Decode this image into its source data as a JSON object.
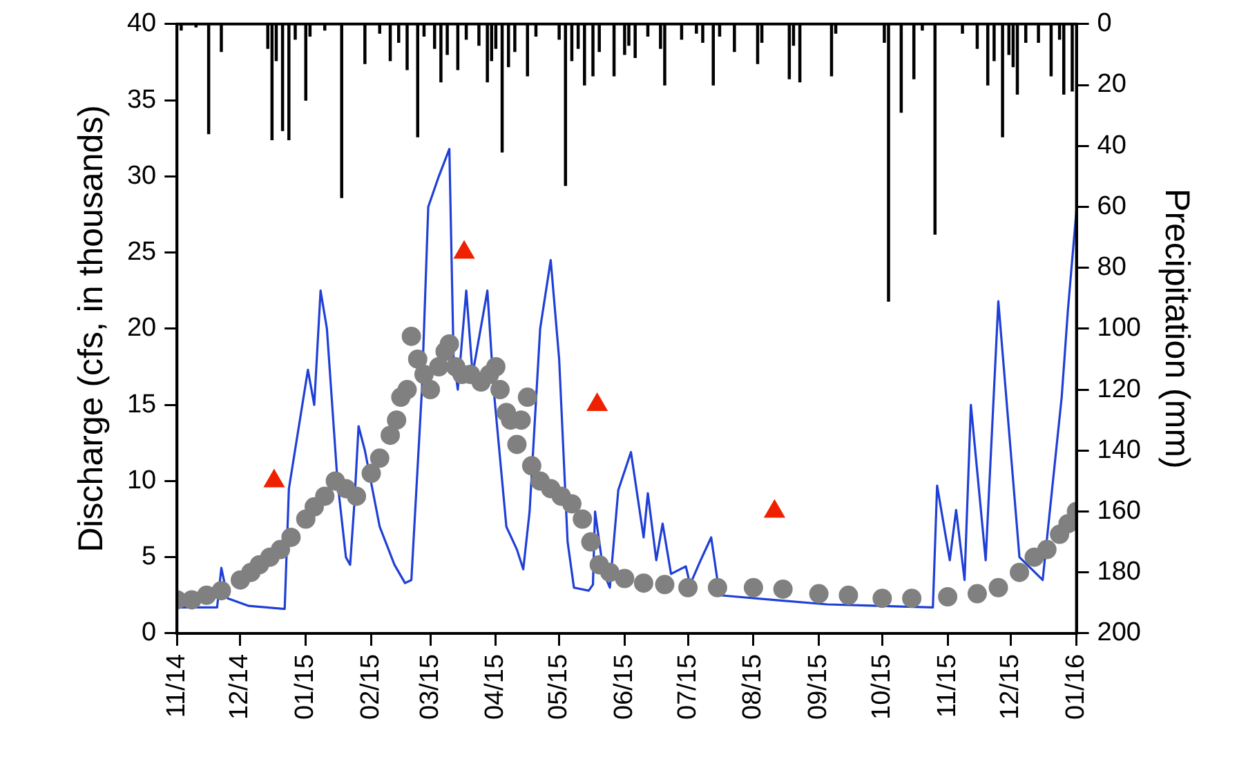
{
  "chart_data": {
    "type": "line",
    "xlabel": null,
    "ylabel": "Discharge (cfs, in thousands)",
    "y2label": "Precipitation (mm)",
    "xlim": [
      "2014-11-01",
      "2016-01-01"
    ],
    "xticks": [
      {
        "value": "2014-11-01",
        "label": "11/14"
      },
      {
        "value": "2014-12-01",
        "label": "12/14"
      },
      {
        "value": "2015-01-01",
        "label": "01/15"
      },
      {
        "value": "2015-02-01",
        "label": "02/15"
      },
      {
        "value": "2015-03-01",
        "label": "03/15"
      },
      {
        "value": "2015-04-01",
        "label": "04/15"
      },
      {
        "value": "2015-05-01",
        "label": "05/15"
      },
      {
        "value": "2015-06-01",
        "label": "06/15"
      },
      {
        "value": "2015-07-01",
        "label": "07/15"
      },
      {
        "value": "2015-08-01",
        "label": "08/15"
      },
      {
        "value": "2015-09-01",
        "label": "09/15"
      },
      {
        "value": "2015-10-01",
        "label": "10/15"
      },
      {
        "value": "2015-11-01",
        "label": "11/15"
      },
      {
        "value": "2015-12-01",
        "label": "12/15"
      },
      {
        "value": "2016-01-01",
        "label": "01/16"
      }
    ],
    "ylim": [
      0,
      40
    ],
    "yticks": [
      0,
      5,
      10,
      15,
      20,
      25,
      30,
      35,
      40
    ],
    "y2lim": [
      200,
      0
    ],
    "y2ticks": [
      0,
      20,
      40,
      60,
      80,
      100,
      120,
      140,
      160,
      180,
      200
    ],
    "grid": false,
    "series": [
      {
        "type": "bar",
        "axis": "y2",
        "color": "#000000",
        "x": [
          "2014-11-03",
          "2014-11-10",
          "2014-11-16",
          "2014-11-22",
          "2014-12-14",
          "2014-12-16",
          "2014-12-18",
          "2014-12-21",
          "2014-12-24",
          "2014-12-27",
          "2015-01-01",
          "2015-01-03",
          "2015-01-10",
          "2015-01-18",
          "2015-01-29",
          "2015-02-05",
          "2015-02-10",
          "2015-02-14",
          "2015-02-18",
          "2015-02-23",
          "2015-02-26",
          "2015-03-03",
          "2015-03-06",
          "2015-03-09",
          "2015-03-14",
          "2015-03-18",
          "2015-03-24",
          "2015-03-28",
          "2015-03-30",
          "2015-04-01",
          "2015-04-04",
          "2015-04-07",
          "2015-04-10",
          "2015-04-16",
          "2015-04-20",
          "2015-05-01",
          "2015-05-04",
          "2015-05-07",
          "2015-05-10",
          "2015-05-13",
          "2015-05-17",
          "2015-05-20",
          "2015-05-27",
          "2015-06-01",
          "2015-06-03",
          "2015-06-06",
          "2015-06-12",
          "2015-06-18",
          "2015-06-20",
          "2015-06-28",
          "2015-07-05",
          "2015-07-08",
          "2015-07-13",
          "2015-07-16",
          "2015-07-23",
          "2015-08-03",
          "2015-08-05",
          "2015-08-18",
          "2015-08-20",
          "2015-08-23",
          "2015-09-07",
          "2015-09-09",
          "2015-10-02",
          "2015-10-04",
          "2015-10-10",
          "2015-10-16",
          "2015-10-20",
          "2015-10-26",
          "2015-11-08",
          "2015-11-15",
          "2015-11-20",
          "2015-11-23",
          "2015-11-27",
          "2015-11-30",
          "2015-12-02",
          "2015-12-04",
          "2015-12-08",
          "2015-12-14",
          "2015-12-20",
          "2015-12-24",
          "2015-12-26",
          "2015-12-30"
        ],
        "values": [
          2,
          1,
          36,
          9,
          8,
          38,
          12,
          35,
          38,
          5,
          25,
          4,
          2,
          57,
          13,
          3,
          12,
          6,
          15,
          37,
          4,
          8,
          19,
          10,
          15,
          5,
          7,
          19,
          12,
          8,
          42,
          14,
          9,
          17,
          4,
          5,
          53,
          12,
          8,
          20,
          17,
          9,
          17,
          10,
          7,
          11,
          4,
          8,
          20,
          5,
          3,
          6,
          20,
          4,
          9,
          13,
          6,
          18,
          7,
          19,
          17,
          3,
          6,
          91,
          29,
          18,
          2,
          69,
          3,
          8,
          20,
          12,
          37,
          10,
          14,
          23,
          6,
          6,
          17,
          5,
          23,
          22
        ]
      },
      {
        "color": "#1f3fd6",
        "marker": "none",
        "x": [
          "2014-11-01",
          "2014-11-20",
          "2014-11-22",
          "2014-11-25",
          "2014-12-05",
          "2014-12-22",
          "2014-12-24",
          "2015-01-02",
          "2015-01-05",
          "2015-01-08",
          "2015-01-11",
          "2015-01-16",
          "2015-01-20",
          "2015-01-22",
          "2015-01-24",
          "2015-01-26",
          "2015-01-29",
          "2015-02-05",
          "2015-02-12",
          "2015-02-17",
          "2015-02-20",
          "2015-02-25",
          "2015-02-28",
          "2015-03-05",
          "2015-03-10",
          "2015-03-12",
          "2015-03-14",
          "2015-03-18",
          "2015-03-21",
          "2015-03-28",
          "2015-03-31",
          "2015-04-06",
          "2015-04-11",
          "2015-04-14",
          "2015-04-17",
          "2015-04-22",
          "2015-04-27",
          "2015-05-01",
          "2015-05-05",
          "2015-05-08",
          "2015-05-15",
          "2015-05-17",
          "2015-05-18",
          "2015-05-22",
          "2015-05-25",
          "2015-05-29",
          "2015-06-04",
          "2015-06-10",
          "2015-06-12",
          "2015-06-16",
          "2015-06-19",
          "2015-06-23",
          "2015-06-30",
          "2015-07-02",
          "2015-07-07",
          "2015-07-12",
          "2015-07-16",
          "2015-08-10",
          "2015-09-05",
          "2015-10-25",
          "2015-10-27",
          "2015-11-02",
          "2015-11-05",
          "2015-11-09",
          "2015-11-12",
          "2015-11-19",
          "2015-11-25",
          "2015-12-05",
          "2015-12-16",
          "2015-12-19",
          "2015-12-25",
          "2015-12-28",
          "2016-01-01"
        ],
        "values": [
          1.7,
          1.7,
          4.3,
          2.3,
          1.8,
          1.6,
          9.5,
          17.3,
          15,
          22.5,
          20,
          10,
          5,
          4.5,
          8.5,
          13.6,
          12,
          7,
          4.5,
          3.3,
          3.5,
          16,
          28,
          30,
          31.8,
          18,
          16,
          22.5,
          17,
          22.5,
          16,
          7,
          5.5,
          4.2,
          8,
          20,
          24.5,
          18,
          6,
          3,
          2.8,
          3.2,
          8,
          4,
          3,
          9.4,
          11.9,
          6.3,
          9.2,
          4.8,
          7.2,
          3.9,
          4.4,
          3.2,
          4.8,
          6.3,
          2.5,
          2.2,
          1.9,
          1.7,
          9.7,
          4.8,
          8.1,
          3.5,
          15,
          4.8,
          21.8,
          5,
          3.5,
          7.5,
          15.5,
          21.3,
          27.8
        ]
      },
      {
        "type": "scatter",
        "color": "#808080",
        "marker": "circle",
        "x": [
          "2014-11-01",
          "2014-11-08",
          "2014-11-15",
          "2014-11-22",
          "2014-12-01",
          "2014-12-06",
          "2014-12-10",
          "2014-12-15",
          "2014-12-20",
          "2014-12-25",
          "2015-01-01",
          "2015-01-05",
          "2015-01-10",
          "2015-01-15",
          "2015-01-20",
          "2015-01-25",
          "2015-02-01",
          "2015-02-05",
          "2015-02-10",
          "2015-02-13",
          "2015-02-15",
          "2015-02-18",
          "2015-02-20",
          "2015-02-23",
          "2015-02-26",
          "2015-03-01",
          "2015-03-05",
          "2015-03-08",
          "2015-03-10",
          "2015-03-13",
          "2015-03-16",
          "2015-03-20",
          "2015-03-25",
          "2015-03-29",
          "2015-04-01",
          "2015-04-03",
          "2015-04-06",
          "2015-04-08",
          "2015-04-11",
          "2015-04-13",
          "2015-04-16",
          "2015-04-18",
          "2015-04-22",
          "2015-04-27",
          "2015-05-02",
          "2015-05-07",
          "2015-05-12",
          "2015-05-16",
          "2015-05-20",
          "2015-05-25",
          "2015-06-01",
          "2015-06-10",
          "2015-06-20",
          "2015-07-01",
          "2015-07-15",
          "2015-08-01",
          "2015-08-15",
          "2015-09-01",
          "2015-09-15",
          "2015-10-01",
          "2015-10-15",
          "2015-11-01",
          "2015-11-15",
          "2015-11-25",
          "2015-12-05",
          "2015-12-12",
          "2015-12-18",
          "2015-12-24",
          "2015-12-28",
          "2016-01-01"
        ],
        "values": [
          2.2,
          2.2,
          2.5,
          2.8,
          3.5,
          4,
          4.5,
          5,
          5.5,
          6.3,
          7.5,
          8.3,
          9,
          10,
          9.5,
          9,
          10.5,
          11.5,
          13,
          14,
          15.5,
          16,
          19.5,
          18,
          17,
          16,
          17.5,
          18.5,
          19,
          17.5,
          17,
          17,
          16.5,
          17,
          17.5,
          16,
          14.5,
          14,
          12.4,
          14,
          15.5,
          11,
          10,
          9.5,
          9,
          8.5,
          7.5,
          6,
          4.5,
          4,
          3.6,
          3.3,
          3.2,
          3,
          3,
          3,
          2.9,
          2.6,
          2.5,
          2.3,
          2.3,
          2.4,
          2.6,
          3,
          4,
          5,
          5.5,
          6.5,
          7.2,
          8
        ]
      },
      {
        "type": "scatter",
        "color": "#ee2200",
        "marker": "triangle",
        "x": [
          "2014-12-17",
          "2015-03-17",
          "2015-05-19",
          "2015-08-11"
        ],
        "values": [
          10,
          25,
          15,
          8
        ]
      }
    ]
  }
}
